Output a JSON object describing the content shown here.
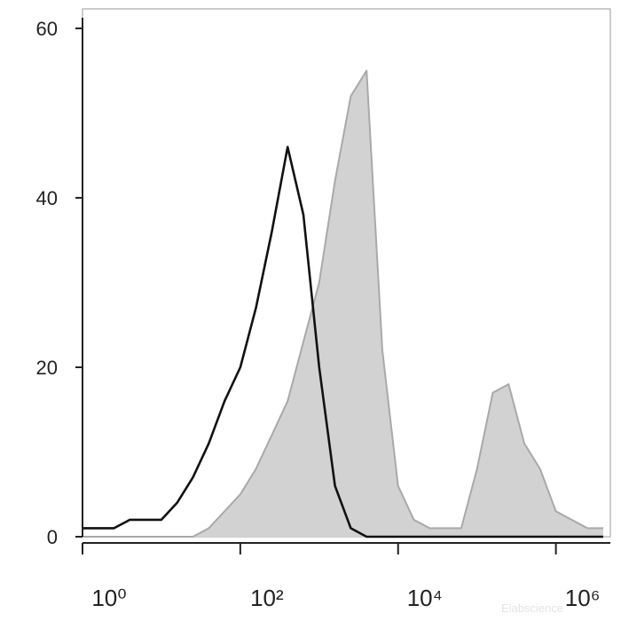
{
  "chart_data": {
    "type": "area",
    "x": [
      1,
      1.58,
      2.51,
      3.98,
      6.31,
      10,
      15.8,
      25.1,
      39.8,
      63.1,
      100,
      158,
      251,
      398,
      631,
      1000,
      1585,
      2512,
      3981,
      6310,
      10000,
      15849,
      25119,
      39811,
      63096,
      100000,
      158489,
      251189,
      398107,
      630957,
      1000000,
      1584893,
      2511886,
      3981072
    ],
    "series": [
      {
        "color": "#d2d2d2",
        "stroke": "#a9a9a9",
        "filled": true,
        "values": [
          0,
          0,
          0,
          0,
          0,
          0,
          0,
          0,
          1,
          3,
          5,
          8,
          12,
          16,
          23,
          30,
          42,
          52,
          55,
          22,
          6,
          2,
          1,
          1,
          1,
          8,
          17,
          18,
          11,
          8,
          3,
          2,
          1,
          1
        ]
      },
      {
        "color": "#111111",
        "stroke": "#111111",
        "filled": false,
        "values": [
          1,
          1,
          1,
          2,
          2,
          2,
          4,
          7,
          11,
          16,
          20,
          27,
          36,
          46,
          38,
          20,
          6,
          1,
          0,
          0,
          0,
          0,
          0,
          0,
          0,
          0,
          0,
          0,
          0,
          0,
          0,
          0,
          0,
          0
        ]
      }
    ],
    "xscale": "log",
    "xlim": [
      1,
      4900000
    ],
    "xticks": [
      {
        "value": 1,
        "label": "10⁰"
      },
      {
        "value": 100,
        "label": "10²"
      },
      {
        "value": 10000,
        "label": "10⁴"
      },
      {
        "value": 1000000,
        "label": "10⁶"
      }
    ],
    "ylim": [
      0,
      62.3
    ],
    "yticks": [
      0,
      20,
      40,
      60
    ],
    "watermark": "Elabscience"
  }
}
